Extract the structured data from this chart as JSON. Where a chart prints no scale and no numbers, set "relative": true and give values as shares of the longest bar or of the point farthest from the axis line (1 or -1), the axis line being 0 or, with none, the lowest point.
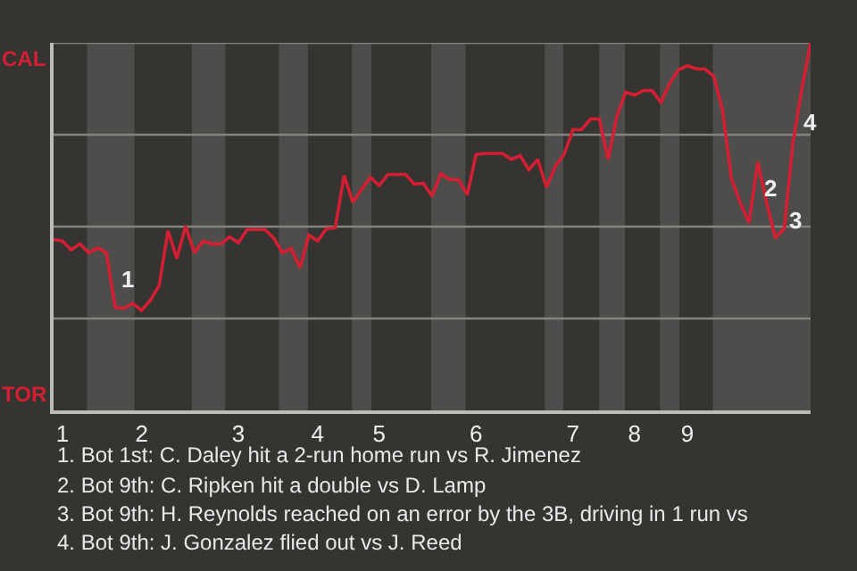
{
  "chart_data": {
    "type": "line",
    "relative": true,
    "categories": [
      null,
      "1",
      null,
      null,
      null,
      null,
      null,
      null,
      null,
      null,
      "2",
      null,
      null,
      null,
      null,
      null,
      null,
      null,
      null,
      null,
      null,
      "3",
      null,
      null,
      null,
      null,
      null,
      null,
      null,
      null,
      "4",
      null,
      null,
      null,
      null,
      null,
      null,
      "5",
      null,
      null,
      null,
      null,
      null,
      null,
      null,
      null,
      null,
      null,
      "6",
      null,
      null,
      null,
      null,
      null,
      null,
      null,
      null,
      null,
      null,
      "7",
      null,
      null,
      null,
      null,
      null,
      null,
      "8",
      null,
      null,
      null,
      null,
      null,
      "9",
      null,
      null,
      null,
      null,
      null,
      null,
      null,
      null,
      null,
      null,
      null,
      null,
      null,
      null
    ],
    "series": [
      {
        "color": "#d41f33",
        "values": [
          0.465,
          0.461,
          0.437,
          0.453,
          0.429,
          0.442,
          0.429,
          0.28,
          0.278,
          0.291,
          0.272,
          0.3,
          0.34,
          0.489,
          0.413,
          0.501,
          0.429,
          0.461,
          0.453,
          0.453,
          0.472,
          0.456,
          0.492,
          0.492,
          0.492,
          0.469,
          0.429,
          0.44,
          0.388,
          0.477,
          0.461,
          0.494,
          0.497,
          0.639,
          0.566,
          0.602,
          0.634,
          0.612,
          0.642,
          0.642,
          0.642,
          0.615,
          0.618,
          0.583,
          0.644,
          0.628,
          0.628,
          0.587,
          0.696,
          0.699,
          0.699,
          0.699,
          0.683,
          0.693,
          0.655,
          0.683,
          0.607,
          0.664,
          0.696,
          0.764,
          0.764,
          0.793,
          0.793,
          0.683,
          0.801,
          0.866,
          0.858,
          0.87,
          0.87,
          0.838,
          0.89,
          0.926,
          0.938,
          0.929,
          0.929,
          0.909,
          0.817,
          0.631,
          0.566,
          0.51,
          0.676,
          0.566,
          0.469,
          0.494,
          0.728,
          0.874,
          1.0
        ]
      }
    ],
    "tick_labels": "x",
    "marker": "none",
    "line_style": "solid",
    "ref_lines": [
      {
        "axis": "y",
        "value": 0.25,
        "color": "#858380"
      },
      {
        "axis": "y",
        "value": 0.5,
        "color": "#858380"
      },
      {
        "axis": "y",
        "value": 0.75,
        "color": "#858380"
      },
      {
        "axis": "y",
        "value": 1.0,
        "color": "#858380"
      }
    ],
    "annotations": [
      "CAL",
      "TOR",
      "1",
      "2",
      "3",
      "4",
      "1. Bot 1st: C. Daley hit a 2-run home run vs R. Jimenez",
      "2. Bot 9th: C. Ripken hit a double vs D. Lamp",
      "3. Bot 9th: H. Reynolds reached on an error by the 3B, driving in 1 run vs",
      "4. Bot 9th: J. Gonzalez flied out vs J. Reed"
    ]
  }
}
